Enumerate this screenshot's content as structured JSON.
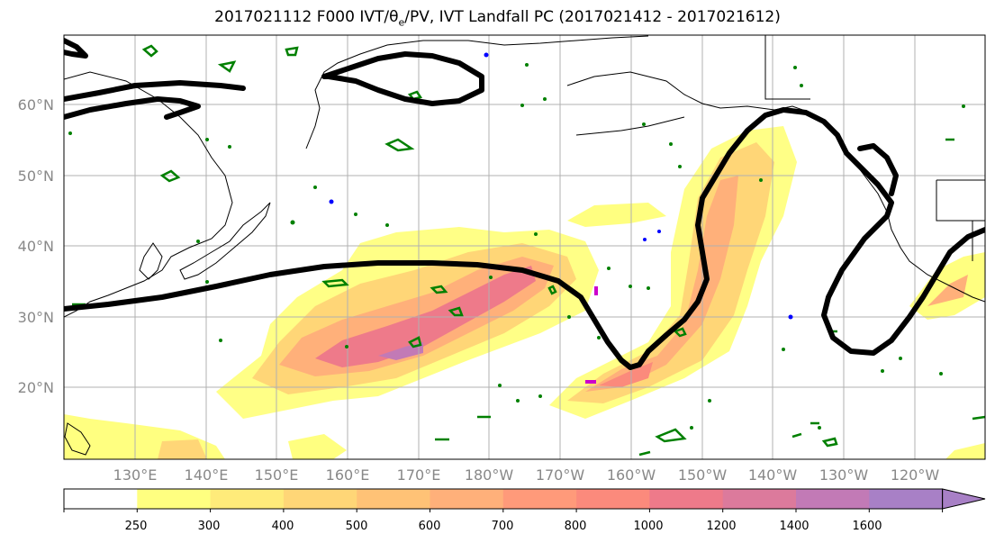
{
  "title": {
    "prefix": "2017021112 F000 IVT/θ",
    "sub": "e",
    "suffix": "/PV, IVT Landfall PC (2017021412 - 2017021612)"
  },
  "lat_labels": [
    "60°N",
    "50°N",
    "40°N",
    "30°N",
    "20°N"
  ],
  "lon_labels": [
    "130°E",
    "140°E",
    "150°E",
    "160°E",
    "170°E",
    "180°W",
    "170°W",
    "160°W",
    "150°W",
    "140°W",
    "130°W",
    "120°W"
  ],
  "colorbar": {
    "ticks": [
      "250",
      "300",
      "400",
      "500",
      "600",
      "700",
      "800",
      "1000",
      "1200",
      "1400",
      "1600"
    ],
    "colors": [
      "#ffffff",
      "#ffff80",
      "#ffeb7a",
      "#ffd677",
      "#ffc276",
      "#ffb07a",
      "#ff9a7a",
      "#fb8a7c",
      "#ee7a8a",
      "#dc7a9c",
      "#c27ab6",
      "#a880c6"
    ]
  },
  "colors": {
    "pc_contour": "#000000",
    "pv_contour": "#008000",
    "pv_contour_neg": "#0000ff",
    "pv_contour_mag": "#cc00cc",
    "coastline": "#000000",
    "grid": "#b0b0b0"
  },
  "map": {
    "lon_range": [
      120,
      250
    ],
    "lat_range": [
      10,
      70
    ]
  }
}
